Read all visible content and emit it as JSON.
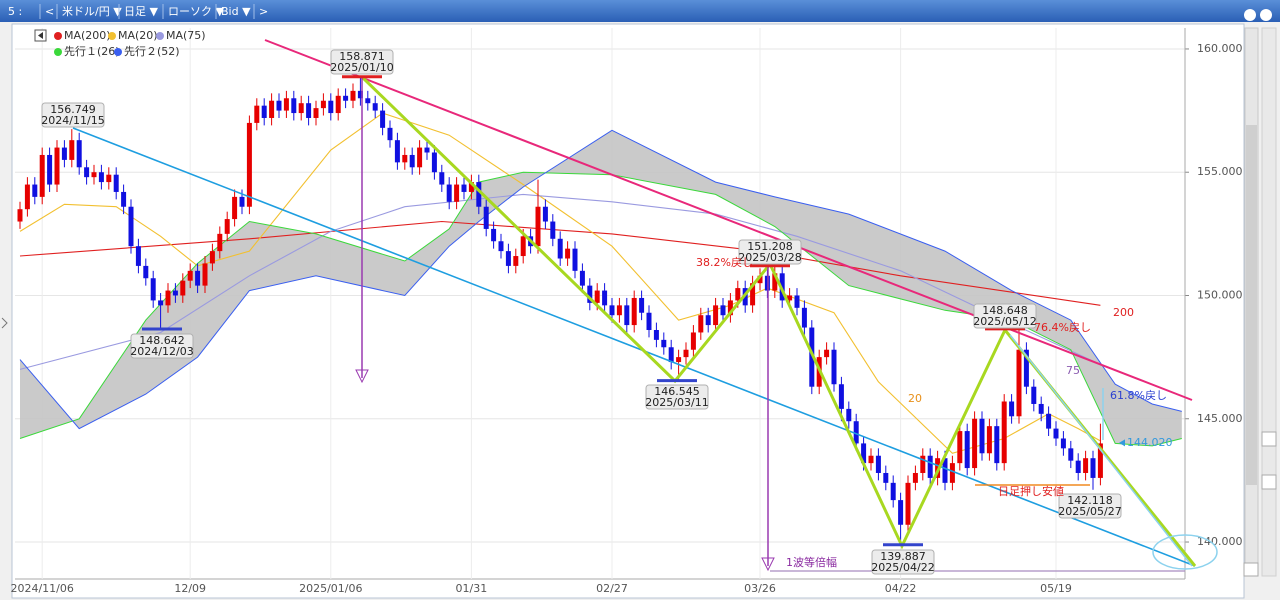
{
  "toolbar": {
    "items": [
      "5 :",
      "<",
      "米ドル/円 ▼",
      "日足 ▼",
      "ローソク ▼",
      "Bid ▼",
      ">"
    ]
  },
  "chart_data": {
    "type": "candlestick",
    "up_color": "#e60000",
    "down_color": "#1010e0",
    "categories": [
      null,
      null,
      null,
      "2024/11/06",
      null,
      null,
      null,
      null,
      null,
      null,
      null,
      null,
      null,
      null,
      null,
      null,
      null,
      null,
      null,
      null,
      null,
      null,
      null,
      "12/09",
      null,
      null,
      null,
      null,
      null,
      null,
      null,
      null,
      null,
      null,
      null,
      null,
      null,
      null,
      null,
      null,
      null,
      null,
      "2025/01/06",
      null,
      null,
      null,
      null,
      null,
      null,
      null,
      null,
      null,
      null,
      null,
      null,
      null,
      null,
      null,
      null,
      null,
      null,
      "01/31",
      null,
      null,
      null,
      null,
      null,
      null,
      null,
      null,
      null,
      null,
      null,
      null,
      null,
      null,
      null,
      null,
      null,
      null,
      "02/27",
      null,
      null,
      null,
      null,
      null,
      null,
      null,
      null,
      null,
      null,
      null,
      null,
      null,
      null,
      null,
      null,
      null,
      null,
      null,
      "03/26",
      null,
      null,
      null,
      null,
      null,
      null,
      null,
      null,
      null,
      null,
      null,
      null,
      null,
      null,
      null,
      null,
      null,
      null,
      "04/22",
      null,
      null,
      null,
      null,
      null,
      null,
      null,
      null,
      null,
      null,
      null,
      null,
      null,
      null,
      null,
      null,
      null,
      null,
      null,
      null,
      "05/19",
      null,
      null,
      null,
      null,
      null,
      null
    ],
    "open": [
      153.0,
      153.5,
      154.5,
      154.0,
      155.7,
      154.5,
      156.0,
      155.5,
      156.3,
      155.2,
      154.8,
      155.0,
      154.6,
      154.9,
      154.2,
      153.6,
      152.0,
      151.2,
      150.7,
      149.8,
      149.6,
      150.2,
      150.0,
      150.6,
      151.0,
      150.4,
      151.3,
      151.8,
      152.5,
      153.1,
      154.0,
      153.6,
      157.0,
      157.7,
      157.2,
      157.9,
      157.5,
      158.0,
      157.4,
      157.8,
      157.2,
      157.6,
      157.9,
      157.4,
      158.1,
      157.9,
      158.3,
      158.0,
      157.8,
      157.5,
      156.8,
      156.3,
      155.4,
      155.7,
      155.2,
      156.0,
      155.8,
      155.0,
      154.5,
      153.8,
      154.5,
      154.2,
      154.6,
      153.6,
      152.7,
      152.2,
      151.8,
      151.2,
      151.6,
      152.4,
      152.0,
      153.6,
      153.0,
      152.3,
      151.5,
      151.9,
      151.0,
      150.4,
      149.7,
      150.2,
      149.6,
      149.2,
      149.6,
      148.8,
      149.9,
      149.3,
      148.6,
      148.2,
      147.9,
      147.3,
      147.5,
      147.8,
      148.5,
      149.2,
      148.8,
      149.6,
      149.2,
      149.8,
      150.3,
      149.6,
      150.5,
      150.8,
      150.2,
      150.9,
      149.8,
      150.0,
      149.5,
      148.7,
      146.3,
      147.5,
      147.8,
      146.4,
      145.4,
      144.9,
      144.0,
      143.2,
      143.5,
      142.8,
      142.4,
      141.7,
      140.7,
      142.4,
      142.8,
      143.5,
      142.6,
      143.4,
      142.4,
      143.2,
      144.5,
      143.0,
      145.0,
      143.6,
      144.7,
      143.2,
      145.7,
      145.1,
      147.8,
      146.3,
      145.6,
      145.2,
      144.6,
      144.2,
      143.8,
      143.3,
      142.8,
      143.4,
      142.6
    ],
    "high": [
      153.8,
      154.8,
      154.8,
      156.0,
      156.0,
      156.3,
      156.3,
      156.749,
      156.6,
      155.5,
      155.3,
      155.3,
      155.2,
      155.2,
      154.5,
      153.9,
      152.3,
      151.5,
      151.0,
      150.1,
      150.5,
      150.5,
      150.9,
      151.3,
      151.3,
      151.6,
      152.1,
      152.8,
      153.4,
      154.3,
      154.3,
      157.3,
      158.0,
      158.0,
      158.2,
      158.2,
      158.3,
      158.3,
      158.1,
      158.1,
      157.9,
      158.2,
      158.2,
      158.4,
      158.4,
      158.6,
      158.871,
      158.3,
      158.1,
      157.8,
      157.1,
      156.6,
      156.0,
      156.0,
      156.3,
      156.3,
      156.1,
      155.3,
      154.8,
      154.8,
      154.8,
      154.9,
      154.9,
      153.9,
      153.0,
      152.5,
      152.1,
      151.9,
      152.7,
      152.7,
      154.7,
      153.9,
      153.3,
      152.6,
      152.2,
      152.2,
      151.3,
      150.7,
      150.5,
      150.5,
      149.9,
      149.9,
      149.9,
      150.2,
      150.2,
      149.6,
      148.9,
      148.5,
      148.2,
      147.8,
      148.1,
      148.8,
      149.5,
      149.5,
      149.9,
      149.9,
      150.1,
      150.6,
      150.6,
      150.8,
      151.1,
      151.1,
      151.208,
      151.2,
      150.3,
      150.3,
      149.8,
      149.0,
      147.8,
      148.1,
      148.1,
      146.7,
      145.7,
      145.2,
      144.3,
      143.8,
      143.8,
      143.1,
      142.7,
      142.0,
      142.7,
      143.1,
      143.8,
      143.8,
      143.7,
      143.7,
      143.5,
      144.8,
      144.8,
      145.3,
      145.3,
      145.0,
      145.0,
      146.0,
      146.0,
      148.648,
      148.1,
      146.6,
      145.9,
      145.5,
      144.9,
      144.5,
      144.1,
      143.6,
      143.7,
      143.7,
      144.8
    ],
    "low": [
      152.7,
      153.2,
      153.7,
      153.7,
      154.2,
      154.2,
      155.2,
      155.2,
      154.9,
      154.5,
      154.5,
      154.3,
      154.3,
      153.9,
      153.3,
      151.7,
      150.9,
      150.4,
      149.5,
      148.642,
      149.3,
      149.7,
      149.7,
      150.3,
      150.1,
      150.1,
      151.0,
      151.5,
      152.2,
      152.8,
      153.3,
      153.3,
      156.7,
      156.9,
      156.9,
      157.2,
      157.2,
      157.1,
      157.1,
      156.9,
      156.9,
      157.3,
      157.1,
      157.1,
      157.6,
      157.6,
      157.7,
      157.5,
      157.2,
      156.5,
      156.0,
      155.1,
      155.1,
      154.9,
      154.9,
      155.5,
      154.7,
      154.2,
      153.5,
      153.5,
      153.9,
      153.9,
      153.3,
      152.4,
      151.9,
      151.5,
      150.9,
      150.9,
      151.3,
      151.7,
      151.7,
      152.7,
      152.0,
      151.2,
      151.2,
      150.7,
      150.1,
      149.4,
      149.4,
      149.3,
      148.9,
      148.9,
      148.5,
      148.5,
      149.0,
      148.3,
      147.9,
      147.6,
      147.0,
      146.545,
      147.2,
      147.5,
      148.2,
      148.5,
      148.5,
      148.9,
      148.9,
      149.5,
      149.3,
      149.3,
      150.2,
      149.9,
      149.9,
      149.5,
      149.5,
      149.2,
      148.4,
      146.0,
      146.0,
      147.2,
      146.1,
      144.9,
      144.6,
      143.7,
      142.9,
      142.9,
      142.5,
      142.1,
      141.4,
      139.887,
      140.4,
      142.1,
      142.5,
      142.3,
      142.3,
      142.1,
      142.1,
      142.9,
      142.7,
      142.7,
      143.3,
      143.3,
      142.9,
      142.9,
      144.8,
      144.8,
      146.0,
      145.3,
      144.9,
      144.3,
      143.9,
      143.5,
      143.0,
      142.5,
      142.5,
      142.118,
      142.3
    ],
    "close": [
      153.5,
      154.5,
      154.0,
      155.7,
      154.5,
      156.0,
      155.5,
      156.3,
      155.2,
      154.8,
      155.0,
      154.6,
      154.9,
      154.2,
      153.6,
      152.0,
      151.2,
      150.7,
      149.8,
      149.6,
      150.2,
      150.0,
      150.6,
      151.0,
      150.4,
      151.3,
      151.8,
      152.5,
      153.1,
      154.0,
      153.6,
      157.0,
      157.7,
      157.2,
      157.9,
      157.5,
      158.0,
      157.4,
      157.8,
      157.2,
      157.6,
      157.9,
      157.4,
      158.1,
      157.9,
      158.3,
      158.0,
      157.8,
      157.5,
      156.8,
      156.3,
      155.4,
      155.7,
      155.2,
      156.0,
      155.8,
      155.0,
      154.5,
      153.8,
      154.5,
      154.2,
      154.6,
      153.6,
      152.7,
      152.2,
      151.8,
      151.2,
      151.6,
      152.4,
      152.0,
      153.6,
      153.0,
      152.3,
      151.5,
      151.9,
      151.0,
      150.4,
      149.7,
      150.2,
      149.6,
      149.2,
      149.6,
      148.8,
      149.9,
      149.3,
      148.6,
      148.2,
      147.9,
      147.3,
      147.5,
      147.8,
      148.5,
      149.2,
      148.8,
      149.6,
      149.2,
      149.8,
      150.3,
      149.6,
      150.5,
      150.8,
      150.2,
      150.9,
      149.8,
      150.0,
      149.5,
      148.7,
      146.3,
      147.5,
      147.8,
      146.4,
      145.4,
      144.9,
      144.0,
      143.2,
      143.5,
      142.8,
      142.4,
      141.7,
      140.7,
      142.4,
      142.8,
      143.5,
      142.6,
      143.4,
      142.4,
      143.2,
      144.5,
      143.0,
      145.0,
      143.6,
      144.7,
      143.2,
      145.7,
      145.1,
      147.8,
      146.3,
      145.6,
      145.2,
      144.6,
      144.2,
      143.8,
      143.3,
      142.8,
      143.4,
      142.6,
      144.0
    ],
    "series": [
      {
        "name": "MA(200)",
        "color": "#e02020",
        "x": [
          0,
          31,
          57,
          80,
          100,
          119,
          146
        ],
        "values": [
          151.6,
          152.3,
          153.0,
          152.5,
          151.8,
          150.8,
          149.6
        ]
      },
      {
        "name": "MA(20)",
        "color": "#f2c030",
        "x": [
          0,
          6,
          13,
          19,
          24,
          31,
          42,
          49,
          58,
          68,
          80,
          89,
          96,
          101,
          110,
          116,
          126,
          133,
          139,
          143,
          146
        ],
        "values": [
          152.6,
          153.7,
          153.6,
          152.4,
          151.2,
          151.8,
          155.9,
          157.4,
          156.5,
          154.5,
          152.0,
          149.0,
          149.6,
          150.3,
          149.3,
          146.5,
          143.6,
          144.2,
          145.2,
          144.6,
          144.1
        ]
      },
      {
        "name": "MA(75)",
        "color": "#9a9ae0",
        "x": [
          0,
          19,
          31,
          42,
          52,
          68,
          80,
          94,
          105,
          119,
          133,
          146
        ],
        "values": [
          147.0,
          148.5,
          150.8,
          152.6,
          153.6,
          154.1,
          153.8,
          153.3,
          152.4,
          151.0,
          149.0,
          147.2
        ]
      },
      {
        "name": "先行１(26)",
        "color": "#3bd83b",
        "x": [
          0,
          8,
          17,
          24,
          31,
          40,
          52,
          58,
          62,
          68,
          80,
          94,
          102,
          112,
          125,
          134,
          142,
          148,
          153,
          157
        ],
        "values": [
          144.2,
          145.0,
          149.0,
          151.3,
          153.0,
          152.5,
          151.4,
          152.7,
          154.6,
          155.0,
          154.9,
          154.1,
          152.8,
          150.4,
          149.4,
          149.0,
          147.8,
          144.0,
          143.9,
          144.2
        ]
      },
      {
        "name": "先行２(52)",
        "color": "#3a5ff0",
        "x": [
          0,
          8,
          17,
          24,
          31,
          40,
          52,
          58,
          62,
          68,
          80,
          94,
          102,
          112,
          125,
          134,
          142,
          148,
          153,
          157
        ],
        "values": [
          147.4,
          144.6,
          146.0,
          147.5,
          150.2,
          150.8,
          150.0,
          152.0,
          153.0,
          154.4,
          156.7,
          154.6,
          154.0,
          153.3,
          151.8,
          150.2,
          149.0,
          146.4,
          145.6,
          145.3
        ]
      }
    ],
    "cloud": true,
    "cloud_color": "#c4c4c4",
    "ylim": [
      138.5,
      160.85
    ],
    "yticks": [
      {
        "value": 140,
        "label": "140.000"
      },
      {
        "value": 145,
        "label": "145.000"
      },
      {
        "value": 150,
        "label": "150.000"
      },
      {
        "value": 155,
        "label": "155.000"
      },
      {
        "value": 160,
        "label": "160.000"
      }
    ],
    "grid": true,
    "annotations": [
      {
        "value": 156.749,
        "date": "2024/11/15"
      },
      {
        "value": 148.642,
        "date": "2024/12/03",
        "marker_color": "#3344cc"
      },
      {
        "value": 158.871,
        "date": "2025/01/10",
        "marker_color": "#e02020"
      },
      {
        "value": 146.545,
        "date": "2025/03/11",
        "marker_color": "#3344cc"
      },
      {
        "value": 151.208,
        "date": "2025/03/28",
        "marker_color": "#e02020"
      },
      {
        "value": 139.887,
        "date": "2025/04/22",
        "marker_color": "#3344cc"
      },
      {
        "value": 148.648,
        "date": "2025/05/12",
        "marker_color": "#e02020"
      },
      {
        "value": 142.118,
        "date": "2025/05/27"
      }
    ],
    "notes": [
      {
        "text": "38.2%戻し",
        "color": "#e02020"
      },
      {
        "text": "76.4%戻し",
        "color": "#e02020"
      },
      {
        "text": "61.8%戻し",
        "color": "#2a3fd0"
      },
      {
        "text": "日足押し安値",
        "color": "#e02020"
      },
      {
        "text": "1波等倍幅",
        "color": "#8a2aa0"
      },
      {
        "text": "200",
        "color": "#e02020"
      },
      {
        "text": "75",
        "color": "#8a5ab0"
      },
      {
        "text": "20",
        "color": "#e8901a"
      }
    ],
    "last_price": {
      "value": 144.02,
      "label": "144.020"
    },
    "last_price_color": "#3399dd"
  }
}
